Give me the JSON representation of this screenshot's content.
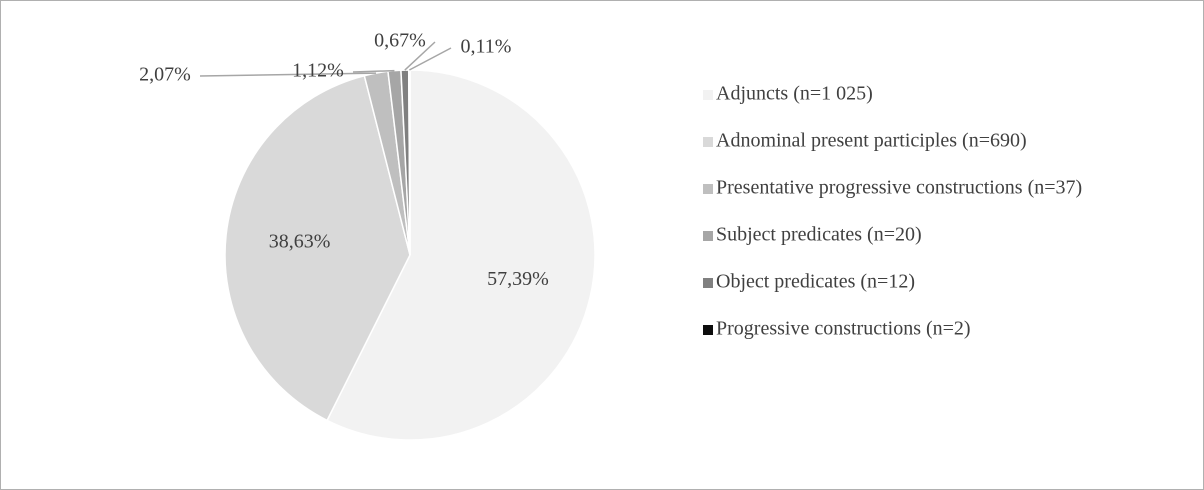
{
  "chart_data": {
    "type": "pie",
    "categories": [
      "Adjuncts (n=1 025)",
      "Adnominal present participles (n=690)",
      "Presentative progressive constructions (n=37)",
      "Subject predicates (n=20)",
      "Object predicates (n=12)",
      "Progressive constructions (n=2)"
    ],
    "values": [
      57.39,
      38.63,
      2.07,
      1.12,
      0.67,
      0.11
    ],
    "value_labels": [
      "57,39%",
      "38,63%",
      "2,07%",
      "1,12%",
      "0,67%",
      "0,11%"
    ],
    "colors": [
      "#f2f2f2",
      "#d9d9d9",
      "#bfbfbf",
      "#a6a6a6",
      "#808080",
      "#0d0d0d"
    ],
    "legend": "right"
  }
}
